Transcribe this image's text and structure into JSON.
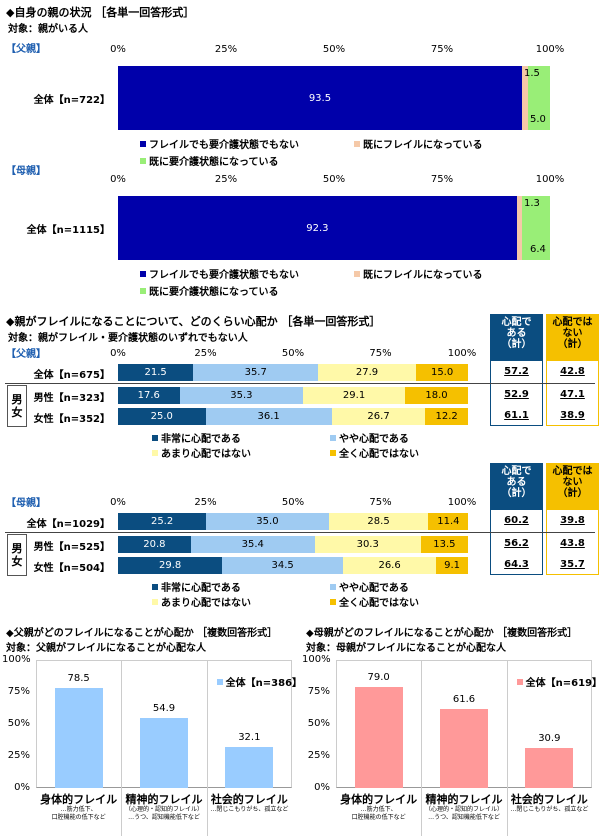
{
  "section1": {
    "title": "◆自身の親の状況 ［各単一回答形式］",
    "subtitle": "対象：親がいる人",
    "axis_ticks": [
      "0%",
      "25%",
      "50%",
      "75%",
      "100%"
    ],
    "legend": [
      {
        "label": "フレイルでも要介護状態でもない",
        "color": "#0000aa"
      },
      {
        "label": "既にフレイルになっている",
        "color": "#f5c9a8"
      },
      {
        "label": "既に要介護状態になっている",
        "color": "#99ee77"
      }
    ]
  },
  "section2": {
    "title": "◆親がフレイルになることについて、どのくらい心配か ［各単一回答形式］",
    "subtitle": "対象：親がフレイル・要介護状態のいずれでもない人",
    "axis_ticks": [
      "0%",
      "25%",
      "50%",
      "75%",
      "100%"
    ],
    "sum_headers": {
      "worried": "心配で ある （計）",
      "not_worried": "心配では ない （計）"
    },
    "gender_label": [
      "男",
      "女"
    ],
    "legend": [
      {
        "label": "非常に心配である",
        "color": "#0b4d80"
      },
      {
        "label": "やや心配である",
        "color": "#9fcbf2"
      },
      {
        "label": "あまり心配ではない",
        "color": "#fff9a8"
      },
      {
        "label": "全く心配ではない",
        "color": "#f5c000"
      }
    ]
  },
  "section3": {
    "father": {
      "title": "◆父親がどのフレイルになることが心配か ［複数回答形式］",
      "subtitle": "対象：父親がフレイルになることが心配な人"
    },
    "mother": {
      "title": "◆母親がどのフレイルになることが心配か ［複数回答形式］",
      "subtitle": "対象：母親がフレイルになることが心配な人"
    },
    "categories": [
      {
        "label": "身体的フレイル",
        "note": "…筋力低下、\n口腔機能の低下など"
      },
      {
        "label": "精神的フレイル",
        "note": "（心理的・認知的フレイル）\n…うつ、認知機能低下など"
      },
      {
        "label": "社会的フレイル",
        "note": "…閉じこもりがち、孤立など"
      }
    ],
    "y_ticks": [
      "0%",
      "25%",
      "50%",
      "75%",
      "100%"
    ]
  },
  "chart_data": [
    {
      "type": "bar",
      "orientation": "horizontal-stacked",
      "group_label": "【父親】",
      "categories": [
        "全体【n=722】"
      ],
      "series": [
        {
          "name": "フレイルでも要介護状態でもない",
          "values": [
            93.5
          ]
        },
        {
          "name": "既にフレイルになっている",
          "values": [
            1.5
          ]
        },
        {
          "name": "既に要介護状態になっている",
          "values": [
            5.0
          ]
        }
      ],
      "xlim": [
        0,
        100
      ]
    },
    {
      "type": "bar",
      "orientation": "horizontal-stacked",
      "group_label": "【母親】",
      "categories": [
        "全体【n=1115】"
      ],
      "series": [
        {
          "name": "フレイルでも要介護状態でもない",
          "values": [
            92.3
          ]
        },
        {
          "name": "既にフレイルになっている",
          "values": [
            1.3
          ]
        },
        {
          "name": "既に要介護状態になっている",
          "values": [
            6.4
          ]
        }
      ],
      "xlim": [
        0,
        100
      ]
    },
    {
      "type": "bar",
      "orientation": "horizontal-stacked",
      "group_label": "【父親】",
      "categories": [
        "全体【n=675】",
        "男性【n=323】",
        "女性【n=352】"
      ],
      "series": [
        {
          "name": "非常に心配である",
          "values": [
            21.5,
            17.6,
            25.0
          ]
        },
        {
          "name": "やや心配である",
          "values": [
            35.7,
            35.3,
            36.1
          ]
        },
        {
          "name": "あまり心配ではない",
          "values": [
            27.9,
            29.1,
            26.7
          ]
        },
        {
          "name": "全く心配ではない",
          "values": [
            15.0,
            18.0,
            12.2
          ]
        }
      ],
      "totals": {
        "worried": [
          "57.2",
          "52.9",
          "61.1"
        ],
        "not_worried": [
          "42.8",
          "47.1",
          "38.9"
        ]
      },
      "xlim": [
        0,
        100
      ]
    },
    {
      "type": "bar",
      "orientation": "horizontal-stacked",
      "group_label": "【母親】",
      "categories": [
        "全体【n=1029】",
        "男性【n=525】",
        "女性【n=504】"
      ],
      "series": [
        {
          "name": "非常に心配である",
          "values": [
            25.2,
            20.8,
            29.8
          ]
        },
        {
          "name": "やや心配である",
          "values": [
            35.0,
            35.4,
            34.5
          ]
        },
        {
          "name": "あまり心配ではない",
          "values": [
            28.5,
            30.3,
            26.6
          ]
        },
        {
          "name": "全く心配ではない",
          "values": [
            11.4,
            13.5,
            9.1
          ]
        }
      ],
      "totals": {
        "worried": [
          "60.2",
          "56.2",
          "64.3"
        ],
        "not_worried": [
          "39.8",
          "43.8",
          "35.7"
        ]
      },
      "xlim": [
        0,
        100
      ]
    },
    {
      "type": "bar",
      "title": "◆父親がどのフレイルになることが心配か",
      "legend": "全体【n=386】",
      "categories": [
        "身体的フレイル",
        "精神的フレイル",
        "社会的フレイル"
      ],
      "values": [
        78.5,
        54.9,
        32.1
      ],
      "color": "#99ccff",
      "ylim": [
        0,
        100
      ]
    },
    {
      "type": "bar",
      "title": "◆母親がどのフレイルになることが心配か",
      "legend": "全体【n=619】",
      "categories": [
        "身体的フレイル",
        "精神的フレイル",
        "社会的フレイル"
      ],
      "values": [
        79.0,
        61.6,
        30.9
      ],
      "color": "#ff9999",
      "ylim": [
        0,
        100
      ]
    }
  ]
}
